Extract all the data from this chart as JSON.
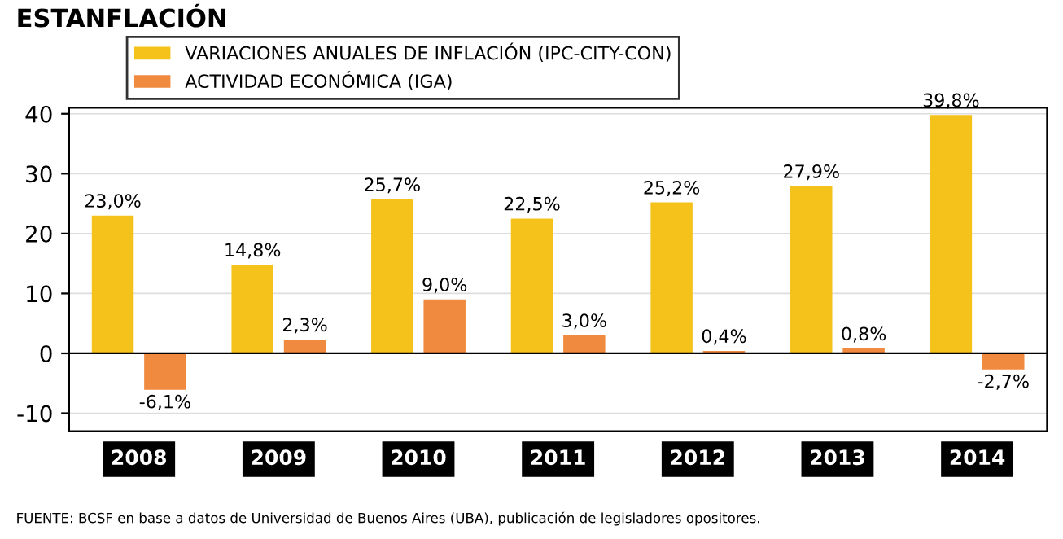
{
  "chart_data": {
    "type": "bar",
    "title": "ESTANFLACIÓN",
    "categories": [
      "2008",
      "2009",
      "2010",
      "2011",
      "2012",
      "2013",
      "2014"
    ],
    "series": [
      {
        "name": "VARIACIONES ANUALES DE INFLACIÓN (IPC-CITY-CON)",
        "color": "#f5c21b",
        "values": [
          23.0,
          14.8,
          25.7,
          22.5,
          25.2,
          27.9,
          39.8
        ],
        "value_labels": [
          "23,0%",
          "14,8%",
          "25,7%",
          "22,5%",
          "25,2%",
          "27,9%",
          "39,8%"
        ]
      },
      {
        "name": "ACTIVIDAD ECONÓMICA (IGA)",
        "color": "#ef8a3e",
        "values": [
          -6.1,
          2.3,
          9.0,
          3.0,
          0.4,
          0.8,
          -2.7
        ],
        "value_labels": [
          "-6,1%",
          "2,3%",
          "9,0%",
          "3,0%",
          "0,4%",
          "0,8%",
          "-2,7%"
        ]
      }
    ],
    "ylim": [
      -13,
      41
    ],
    "yticks": [
      -10,
      0,
      10,
      20,
      30,
      40
    ],
    "grid": "y",
    "legend": "top left",
    "annotations": [
      "FUENTE: BCSF en base a datos de Universidad de Buenos Aires (UBA), publicación de legisladores opositores."
    ]
  }
}
